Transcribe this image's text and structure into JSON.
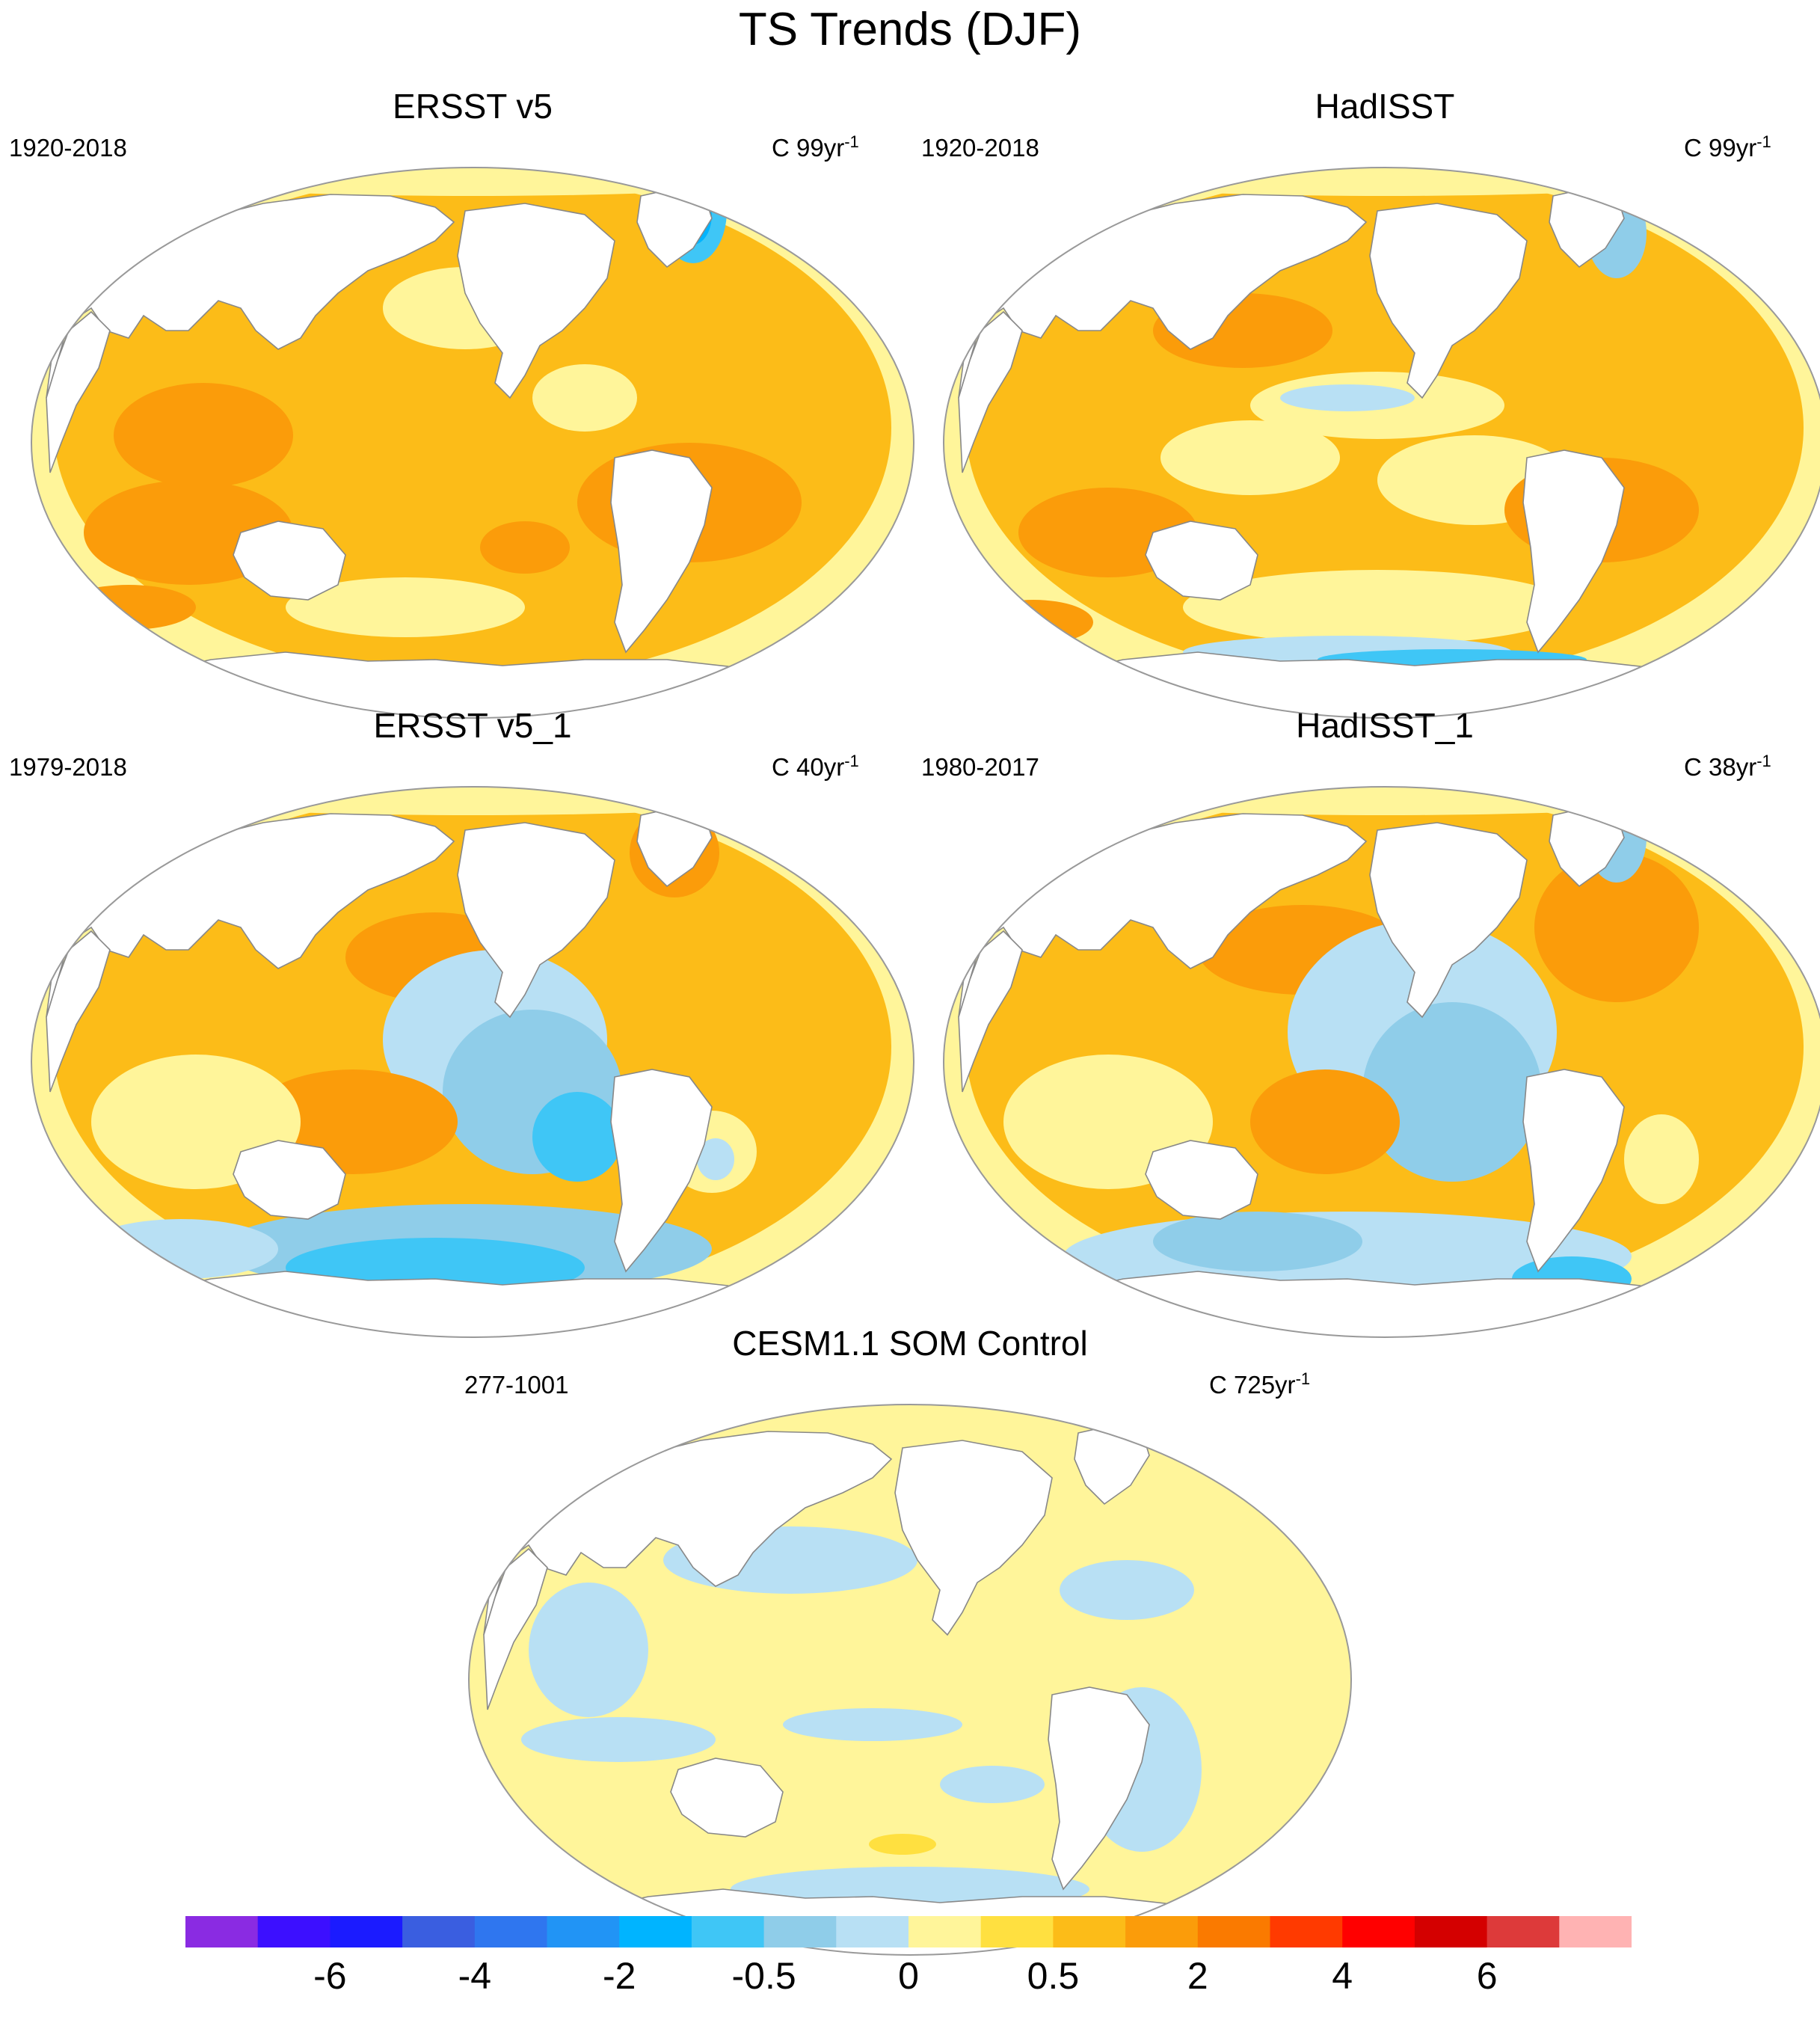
{
  "title": "TS Trends (DJF)",
  "panels": [
    {
      "title": "ERSST v5",
      "period": "1920-2018",
      "units_main": "C 99yr",
      "units_exp": "-1"
    },
    {
      "title": "HadISST",
      "period": "1920-2018",
      "units_main": "C 99yr",
      "units_exp": "-1"
    },
    {
      "title": "ERSST v5_1",
      "period": "1979-2018",
      "units_main": "C 40yr",
      "units_exp": "-1"
    },
    {
      "title": "HadISST_1",
      "period": "1980-2017",
      "units_main": "C 38yr",
      "units_exp": "-1"
    },
    {
      "title": "CESM1.1 SOM Control",
      "period": "277-1001",
      "units_main": "C 725yr",
      "units_exp": "-1"
    }
  ],
  "colorbar": {
    "colors": [
      "#8a2be2",
      "#3c0fff",
      "#1b1bff",
      "#3a5ee0",
      "#2f76ef",
      "#2194f5",
      "#00b4ff",
      "#3fc6f6",
      "#8fcde9",
      "#b8e0f4",
      "#fff59a",
      "#ffe040",
      "#fcbc18",
      "#fb9c0a",
      "#fa7a00",
      "#ff3a00",
      "#ff0000",
      "#d40000",
      "#dd3a3a",
      "#ffb3b3"
    ],
    "tick_labels": [
      "-6",
      "-4",
      "-2",
      "-0.5",
      "0",
      "0.5",
      "2",
      "4",
      "6"
    ],
    "tick_boundaries": [
      2,
      4,
      6,
      8,
      10,
      12,
      14,
      16,
      18
    ]
  },
  "map_colors": {
    "land": "#ffffff",
    "coast": "#888888",
    "yellow": "#fff59a",
    "gold": "#ffe040",
    "orange_light": "#fcbc18",
    "orange": "#fb9c0a",
    "orange_dark": "#fa7a00",
    "red": "#ff3a00",
    "blue_pale": "#b8e0f4",
    "blue_light": "#8fcde9",
    "blue": "#3fc6f6",
    "blue_mid": "#00b4ff"
  }
}
